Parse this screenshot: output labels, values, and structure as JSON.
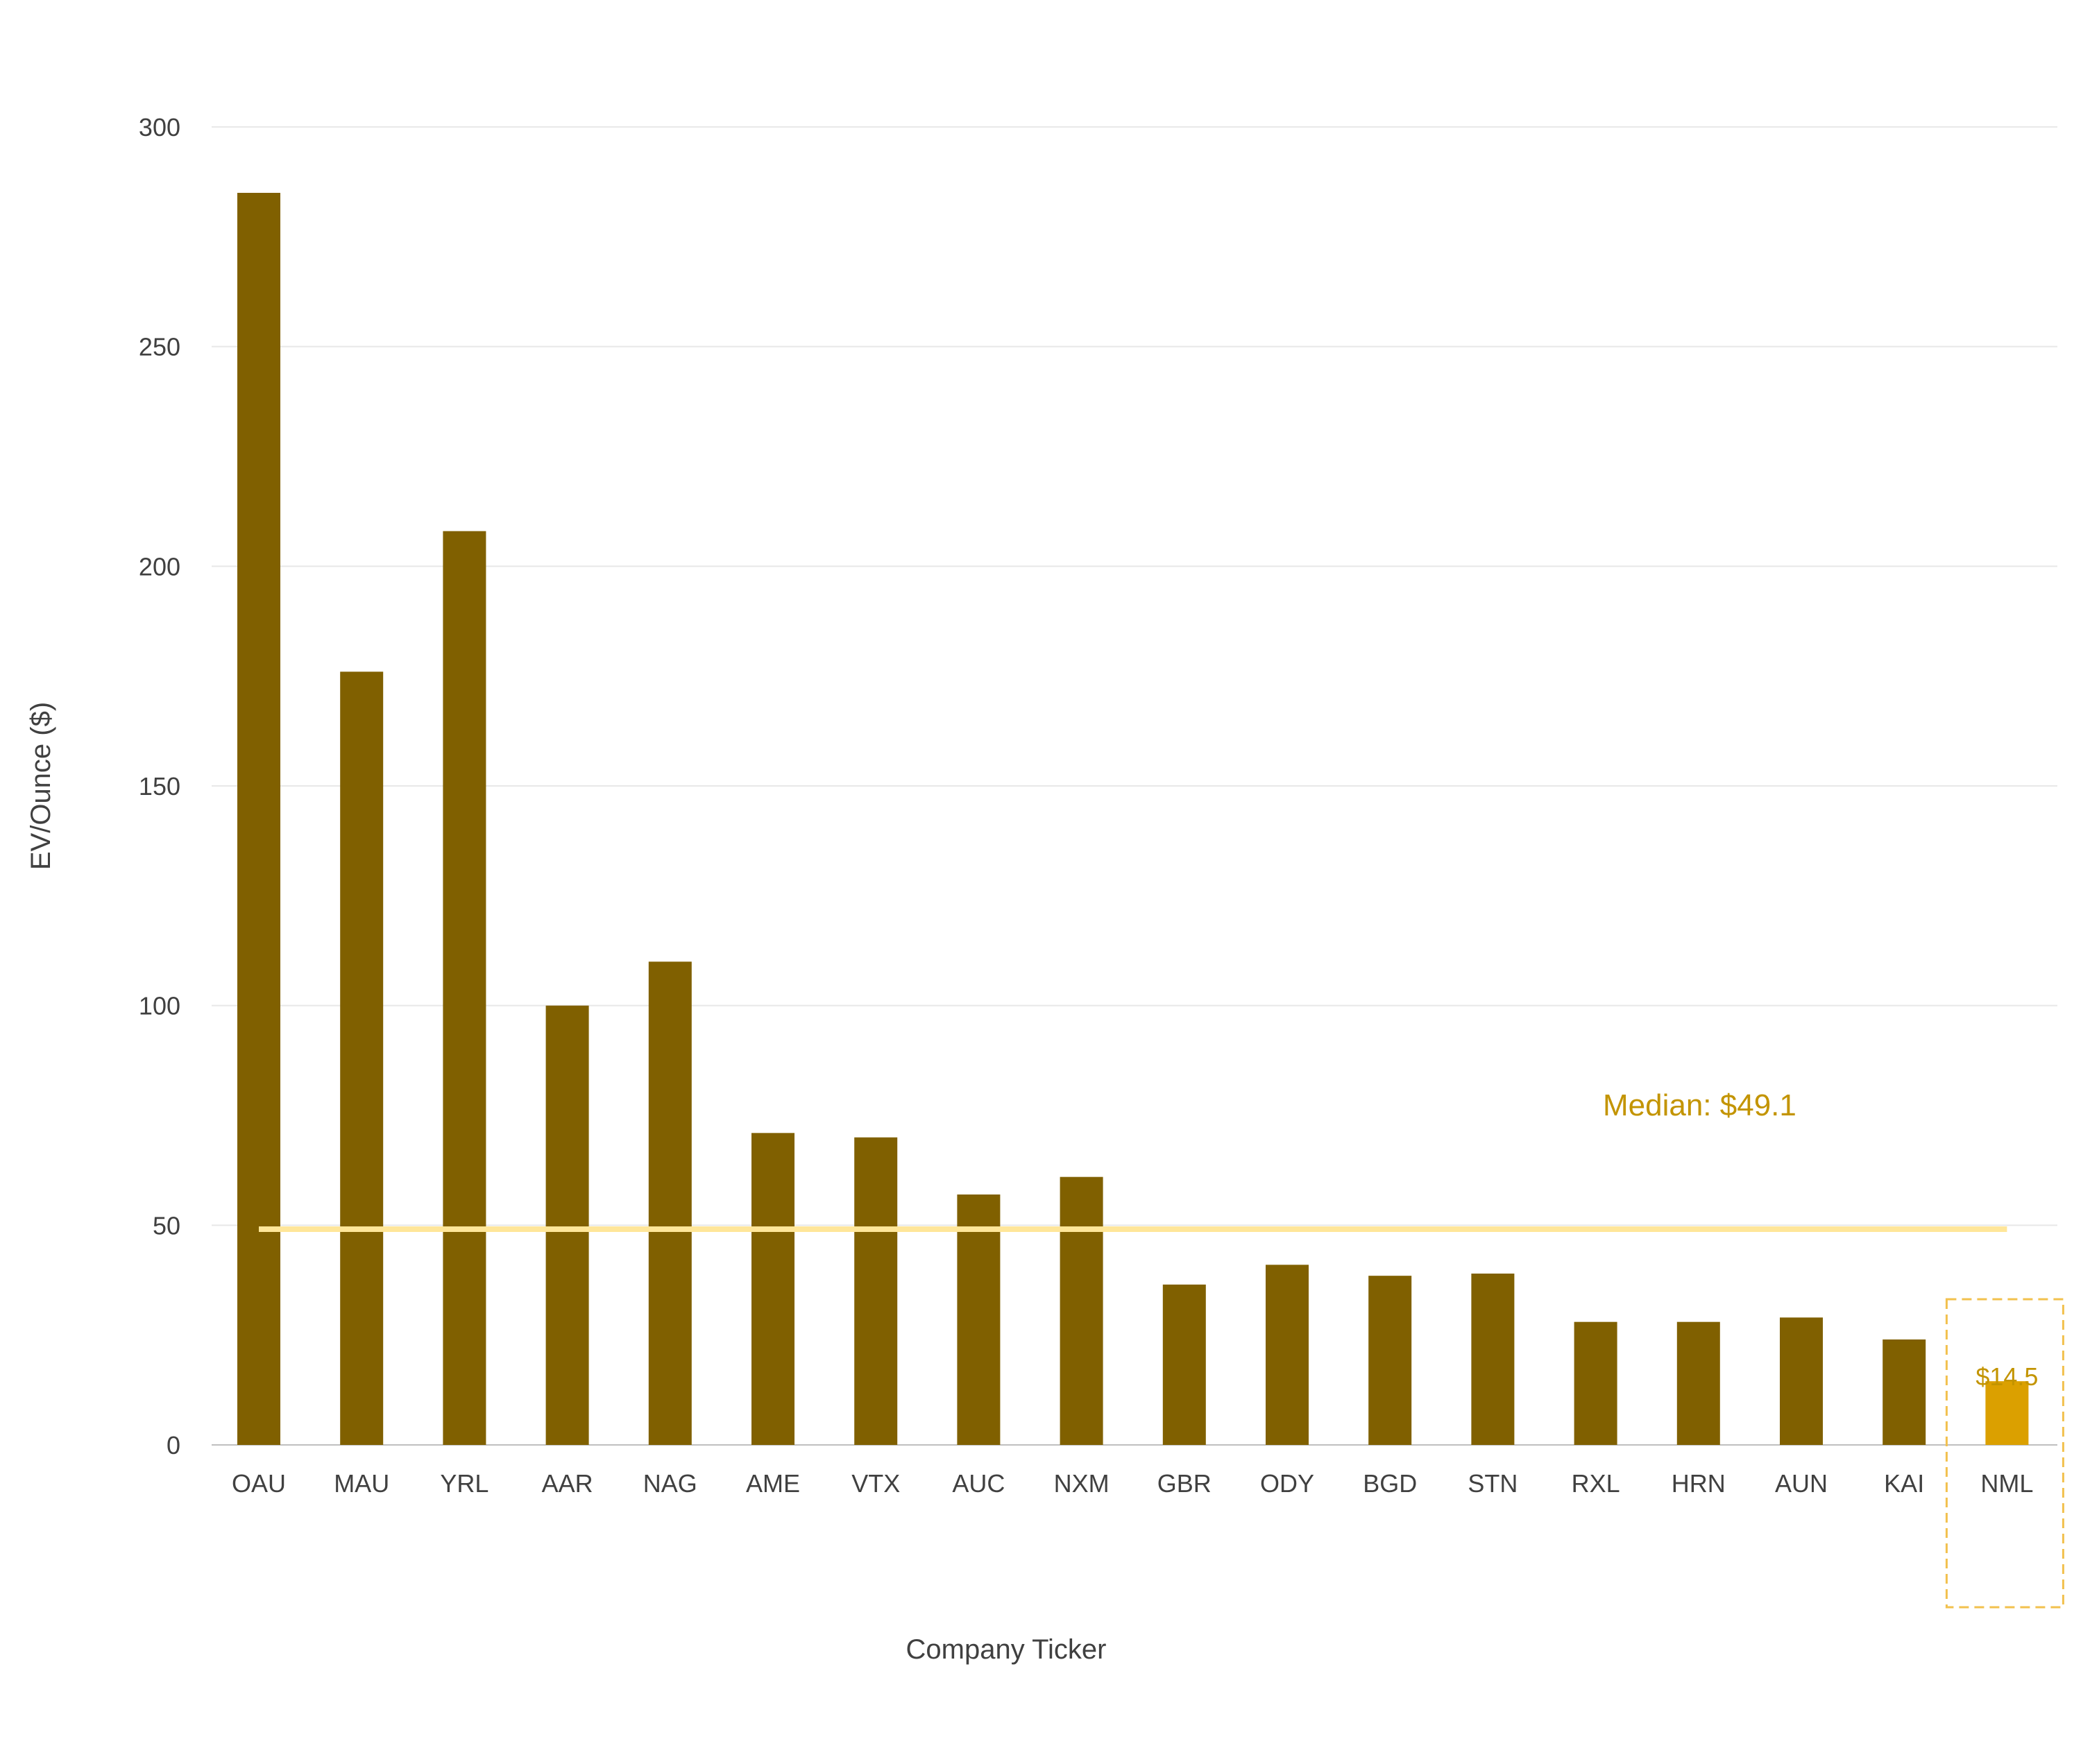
{
  "chart_data": {
    "type": "bar",
    "title": "",
    "xlabel": "Company Ticker",
    "ylabel": "EV/Ounce ($)",
    "ylim": [
      0,
      300
    ],
    "yticks": [
      0,
      50,
      100,
      150,
      200,
      250,
      300
    ],
    "grid": true,
    "legend": "none",
    "categories": [
      "OAU",
      "MAU",
      "YRL",
      "AAR",
      "NAG",
      "AME",
      "VTX",
      "AUC",
      "NXM",
      "GBR",
      "ODY",
      "BGD",
      "STN",
      "RXL",
      "HRN",
      "AUN",
      "KAI",
      "NML"
    ],
    "values": [
      285,
      176,
      208,
      100,
      110,
      71,
      70,
      57,
      61,
      36.5,
      41,
      38.5,
      39,
      28,
      28,
      29,
      24,
      14.5
    ],
    "median": {
      "value": 49.1,
      "label": "Median: $49.1"
    },
    "highlight": {
      "category": "NML",
      "value_label": "$14.5"
    },
    "colors": {
      "bar": "#806000",
      "highlight_bar": "#dba000",
      "median_line": "#ffe699",
      "median_label": "#c39400",
      "highlight_box": "#f2c14e",
      "grid": "#e8e8e8",
      "axis": "#bfbfbf",
      "text": "#404040"
    }
  }
}
